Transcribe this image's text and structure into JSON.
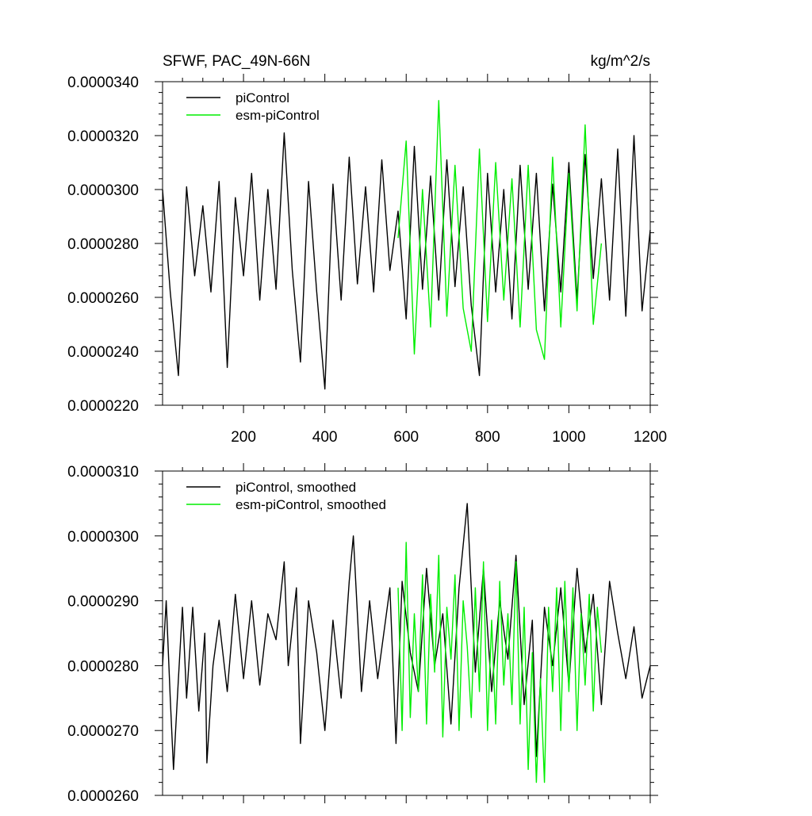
{
  "chart_data": [
    {
      "type": "line",
      "title_left": "SFWF, PAC_49N-66N",
      "title_right": "kg/m^2/s",
      "xlim": [
        1,
        1200
      ],
      "ylim": [
        2.2e-05,
        3.4e-05
      ],
      "xticks": [
        200,
        400,
        600,
        800,
        1000,
        1200
      ],
      "yticks": [
        {
          "value": 2.2e-05,
          "label": "0.0000220"
        },
        {
          "value": 2.4e-05,
          "label": "0.0000240"
        },
        {
          "value": 2.6e-05,
          "label": "0.0000260"
        },
        {
          "value": 2.8e-05,
          "label": "0.0000280"
        },
        {
          "value": 3e-05,
          "label": "0.0000300"
        },
        {
          "value": 3.2e-05,
          "label": "0.0000320"
        },
        {
          "value": 3.4e-05,
          "label": "0.0000340"
        }
      ],
      "legend_position": "top-left",
      "series": [
        {
          "name": "piControl",
          "color": "#000000",
          "x": [
            1,
            20,
            40,
            60,
            80,
            100,
            120,
            140,
            160,
            180,
            200,
            220,
            240,
            260,
            280,
            300,
            320,
            340,
            360,
            380,
            400,
            420,
            440,
            460,
            480,
            500,
            520,
            540,
            560,
            580,
            600,
            620,
            640,
            660,
            680,
            700,
            720,
            740,
            760,
            780,
            800,
            820,
            840,
            860,
            880,
            900,
            920,
            940,
            960,
            980,
            1000,
            1020,
            1040,
            1060,
            1080,
            1100,
            1120,
            1140,
            1160,
            1180,
            1200
          ],
          "y": [
            3e-05,
            2.62e-05,
            2.31e-05,
            3.01e-05,
            2.68e-05,
            2.94e-05,
            2.62e-05,
            3.03e-05,
            2.34e-05,
            2.97e-05,
            2.68e-05,
            3.06e-05,
            2.59e-05,
            3e-05,
            2.63e-05,
            3.21e-05,
            2.7e-05,
            2.36e-05,
            3.03e-05,
            2.62e-05,
            2.26e-05,
            3.02e-05,
            2.59e-05,
            3.12e-05,
            2.65e-05,
            3.01e-05,
            2.62e-05,
            3.11e-05,
            2.7e-05,
            2.92e-05,
            2.52e-05,
            3.16e-05,
            2.63e-05,
            3.05e-05,
            2.59e-05,
            3.11e-05,
            2.64e-05,
            3.01e-05,
            2.57e-05,
            2.31e-05,
            3.06e-05,
            2.62e-05,
            3e-05,
            2.52e-05,
            3.09e-05,
            2.63e-05,
            3.06e-05,
            2.55e-05,
            3.02e-05,
            2.62e-05,
            3.1e-05,
            2.59e-05,
            3.13e-05,
            2.67e-05,
            3.04e-05,
            2.59e-05,
            3.15e-05,
            2.53e-05,
            3.2e-05,
            2.55e-05,
            2.85e-05
          ]
        },
        {
          "name": "esm-piControl",
          "color": "#00ee00",
          "x": [
            580,
            600,
            620,
            640,
            660,
            680,
            700,
            720,
            740,
            760,
            780,
            800,
            820,
            840,
            860,
            880,
            900,
            920,
            940,
            960,
            980,
            1000,
            1020,
            1040,
            1060,
            1080
          ],
          "y": [
            2.82e-05,
            3.18e-05,
            2.39e-05,
            3e-05,
            2.49e-05,
            3.33e-05,
            2.53e-05,
            3.09e-05,
            2.56e-05,
            2.4e-05,
            3.15e-05,
            2.51e-05,
            3.1e-05,
            2.59e-05,
            3.04e-05,
            2.49e-05,
            3.09e-05,
            2.48e-05,
            2.37e-05,
            3.12e-05,
            2.49e-05,
            3.06e-05,
            2.55e-05,
            3.24e-05,
            2.5e-05,
            2.8e-05
          ]
        }
      ]
    },
    {
      "type": "line",
      "xlim": [
        1,
        1200
      ],
      "ylim": [
        2.6e-05,
        3.1e-05
      ],
      "xticks": [
        200,
        400,
        600,
        800,
        1000,
        1200
      ],
      "yticks": [
        {
          "value": 2.6e-05,
          "label": "0.0000260"
        },
        {
          "value": 2.7e-05,
          "label": "0.0000270"
        },
        {
          "value": 2.8e-05,
          "label": "0.0000280"
        },
        {
          "value": 2.9e-05,
          "label": "0.0000290"
        },
        {
          "value": 3e-05,
          "label": "0.0000300"
        },
        {
          "value": 3.1e-05,
          "label": "0.0000310"
        }
      ],
      "legend_position": "top-left",
      "series": [
        {
          "name": "piControl, smoothed",
          "color": "#000000",
          "x": [
            1,
            10,
            20,
            28,
            40,
            50,
            60,
            75,
            90,
            105,
            110,
            125,
            140,
            160,
            180,
            200,
            220,
            240,
            260,
            280,
            300,
            310,
            330,
            340,
            360,
            380,
            400,
            420,
            440,
            460,
            470,
            490,
            510,
            530,
            560,
            575,
            590,
            610,
            630,
            650,
            670,
            690,
            710,
            730,
            750,
            770,
            790,
            810,
            830,
            850,
            870,
            890,
            910,
            920,
            940,
            960,
            980,
            1000,
            1020,
            1040,
            1060,
            1080,
            1100,
            1120,
            1140,
            1160,
            1180,
            1200
          ],
          "y": [
            2.8e-05,
            2.9e-05,
            2.75e-05,
            2.64e-05,
            2.78e-05,
            2.89e-05,
            2.75e-05,
            2.89e-05,
            2.73e-05,
            2.85e-05,
            2.65e-05,
            2.8e-05,
            2.87e-05,
            2.76e-05,
            2.91e-05,
            2.78e-05,
            2.9e-05,
            2.77e-05,
            2.88e-05,
            2.84e-05,
            2.96e-05,
            2.8e-05,
            2.92e-05,
            2.68e-05,
            2.9e-05,
            2.82e-05,
            2.7e-05,
            2.87e-05,
            2.75e-05,
            2.93e-05,
            3e-05,
            2.76e-05,
            2.9e-05,
            2.78e-05,
            2.92e-05,
            2.68e-05,
            2.93e-05,
            2.82e-05,
            2.76e-05,
            2.95e-05,
            2.8e-05,
            2.88e-05,
            2.71e-05,
            2.92e-05,
            3.05e-05,
            2.79e-05,
            2.95e-05,
            2.76e-05,
            2.9e-05,
            2.81e-05,
            2.97e-05,
            2.74e-05,
            2.87e-05,
            2.66e-05,
            2.89e-05,
            2.8e-05,
            2.92e-05,
            2.77e-05,
            2.95e-05,
            2.82e-05,
            2.91e-05,
            2.74e-05,
            2.93e-05,
            2.85e-05,
            2.78e-05,
            2.86e-05,
            2.75e-05,
            2.8e-05
          ]
        },
        {
          "name": "esm-piControl, smoothed",
          "color": "#00ee00",
          "x": [
            580,
            590,
            600,
            610,
            620,
            630,
            640,
            650,
            660,
            670,
            680,
            690,
            700,
            710,
            720,
            730,
            740,
            750,
            760,
            770,
            780,
            790,
            800,
            810,
            820,
            830,
            840,
            850,
            860,
            870,
            880,
            890,
            900,
            910,
            920,
            930,
            940,
            950,
            960,
            970,
            980,
            990,
            1000,
            1010,
            1020,
            1030,
            1040,
            1050,
            1060,
            1070,
            1080
          ],
          "y": [
            2.92e-05,
            2.7e-05,
            2.99e-05,
            2.72e-05,
            2.88e-05,
            2.76e-05,
            2.94e-05,
            2.71e-05,
            2.91e-05,
            2.79e-05,
            2.97e-05,
            2.69e-05,
            2.89e-05,
            2.81e-05,
            2.94e-05,
            2.7e-05,
            2.9e-05,
            2.83e-05,
            2.72e-05,
            2.92e-05,
            2.76e-05,
            2.96e-05,
            2.7e-05,
            2.87e-05,
            2.71e-05,
            2.93e-05,
            2.77e-05,
            2.88e-05,
            2.74e-05,
            2.96e-05,
            2.71e-05,
            2.89e-05,
            2.64e-05,
            2.82e-05,
            2.62e-05,
            2.78e-05,
            2.62e-05,
            2.89e-05,
            2.76e-05,
            2.92e-05,
            2.7e-05,
            2.93e-05,
            2.76e-05,
            2.92e-05,
            2.7e-05,
            2.88e-05,
            2.77e-05,
            2.91e-05,
            2.73e-05,
            2.89e-05,
            2.82e-05
          ]
        }
      ]
    }
  ]
}
